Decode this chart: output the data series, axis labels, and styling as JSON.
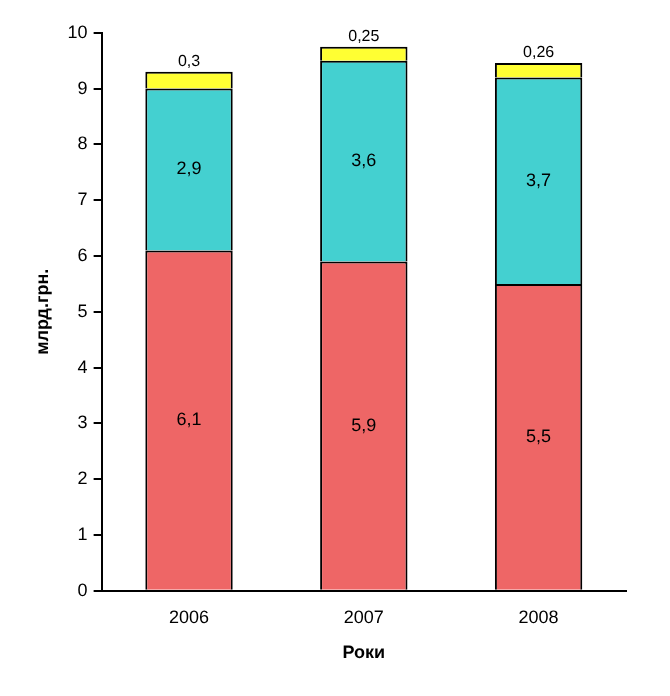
{
  "chart_data": {
    "type": "bar",
    "stacked": true,
    "xlabel": "Роки",
    "ylabel": "млрд.грн.",
    "categories": [
      "2006",
      "2007",
      "2008"
    ],
    "series": [
      {
        "color": "#ee6666",
        "values": [
          6.1,
          5.9,
          5.5
        ],
        "value_labels": [
          "6,1",
          "5,9",
          "5,5"
        ]
      },
      {
        "color": "#44d0d0",
        "values": [
          2.9,
          3.6,
          3.7
        ],
        "value_labels": [
          "2,9",
          "3,6",
          "3,7"
        ]
      },
      {
        "color": "#ffff33",
        "values": [
          0.3,
          0.25,
          0.26
        ],
        "value_labels": [
          "0,3",
          "0,25",
          "0,26"
        ]
      }
    ],
    "ylim": [
      0,
      10
    ],
    "yticks": [
      0,
      1,
      2,
      3,
      4,
      5,
      6,
      7,
      8,
      9,
      10
    ],
    "grid": false,
    "legend": false
  }
}
